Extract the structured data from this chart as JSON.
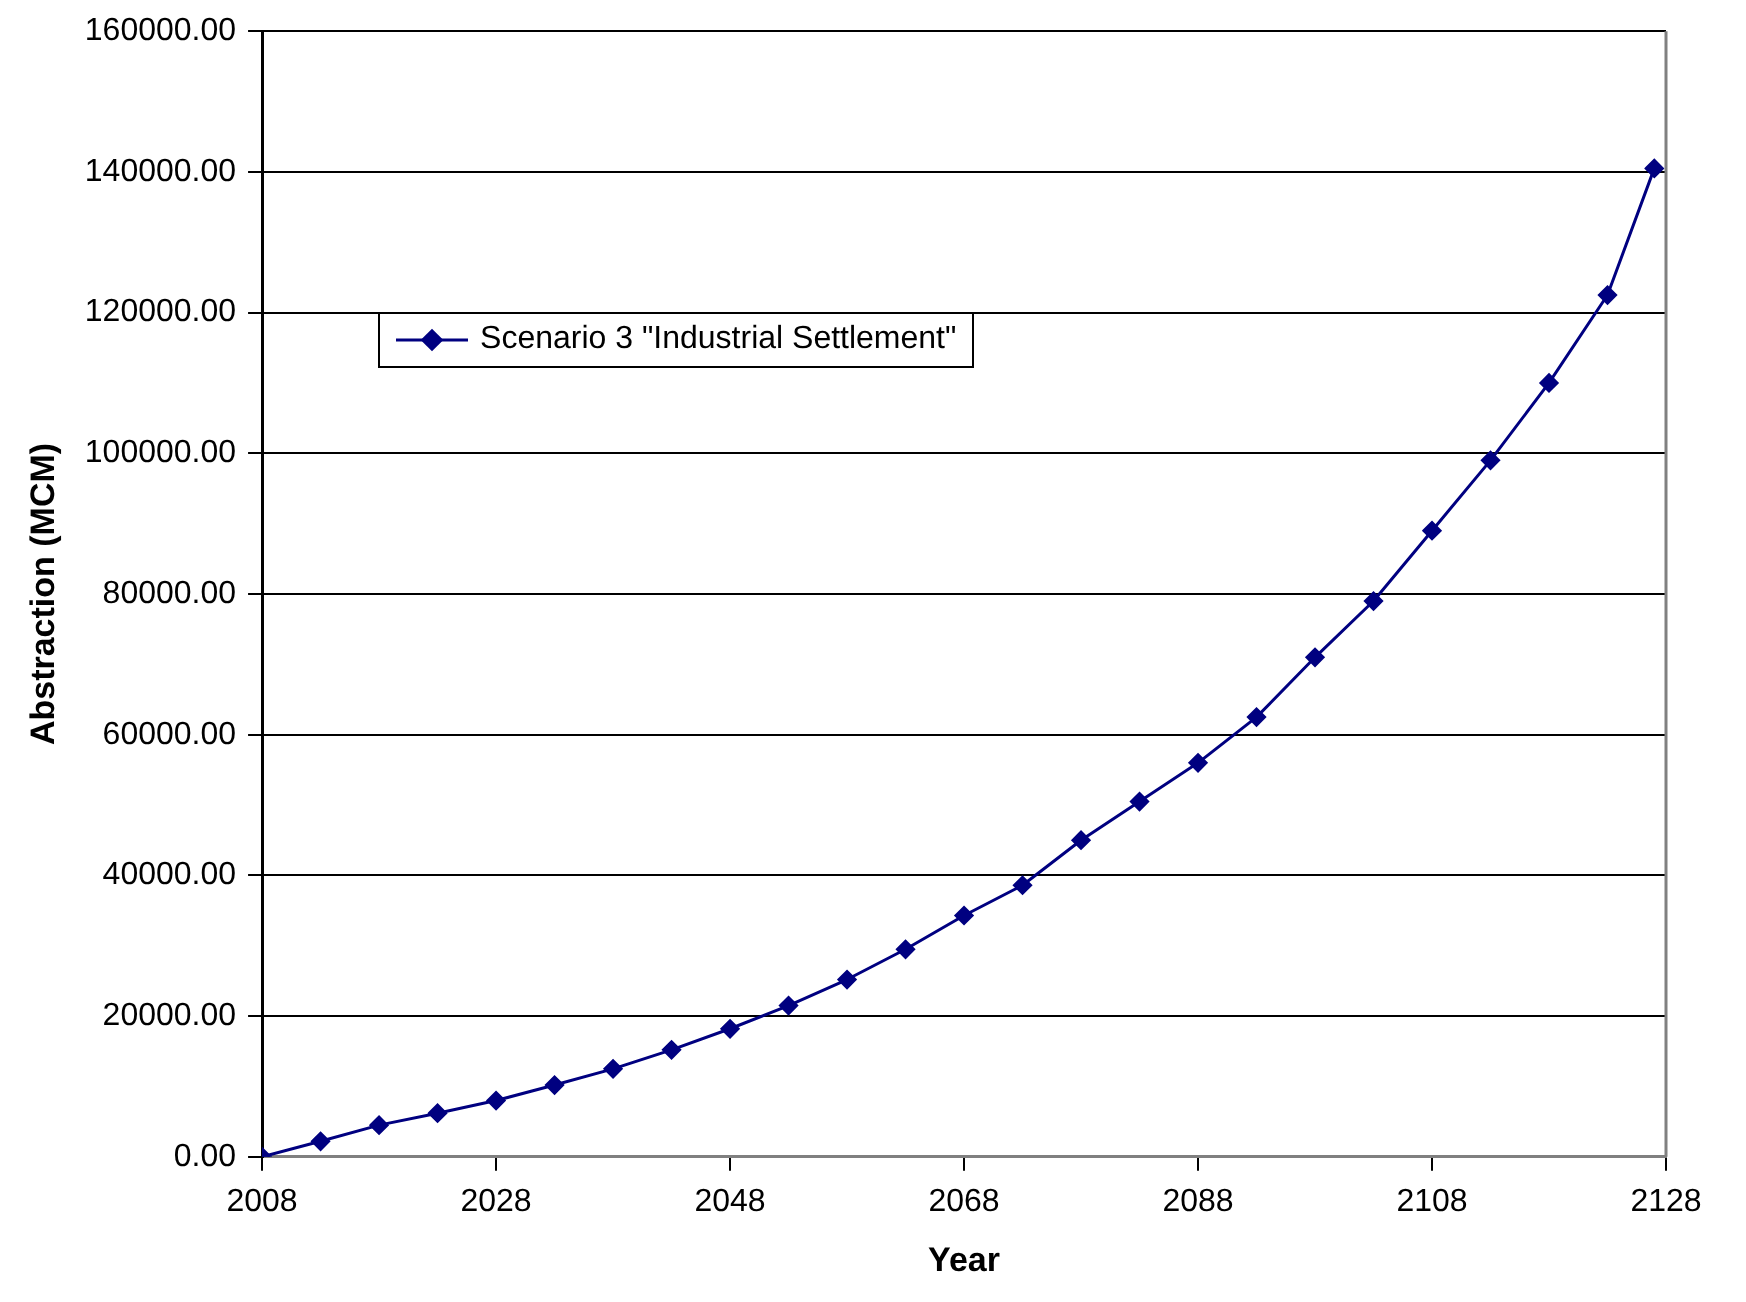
{
  "chart_data": {
    "type": "line",
    "xlabel": "Year",
    "ylabel": "Abstraction (MCM)",
    "x": [
      2008,
      2013,
      2018,
      2023,
      2028,
      2033,
      2038,
      2043,
      2048,
      2053,
      2058,
      2063,
      2068,
      2073,
      2078,
      2083,
      2088,
      2093,
      2098,
      2103,
      2108,
      2113,
      2118,
      2123,
      2127
    ],
    "series": [
      {
        "name": "Scenario 3 \"Industrial Settlement\"",
        "color": "#000080",
        "values": [
          0,
          2200,
          4500,
          6200,
          8000,
          10200,
          12500,
          15200,
          18200,
          21500,
          25200,
          29500,
          34300,
          38600,
          45000,
          50500,
          56000,
          62500,
          71000,
          79000,
          89000,
          99000,
          110000,
          122500,
          140500
        ]
      }
    ],
    "xlim": [
      2008,
      2128
    ],
    "xticks": [
      2008,
      2028,
      2048,
      2068,
      2088,
      2108,
      2128
    ],
    "ylim": [
      0,
      160000
    ],
    "yticks": [
      {
        "value": 0,
        "label": "0.00"
      },
      {
        "value": 20000,
        "label": "20000.00"
      },
      {
        "value": 40000,
        "label": "40000.00"
      },
      {
        "value": 60000,
        "label": "60000.00"
      },
      {
        "value": 80000,
        "label": "80000.00"
      },
      {
        "value": 100000,
        "label": "100000.00"
      },
      {
        "value": 120000,
        "label": "120000.00"
      },
      {
        "value": 140000,
        "label": "140000.00"
      },
      {
        "value": 160000,
        "label": "160000.00"
      }
    ],
    "grid": "y",
    "legend": "top left",
    "marker": "diamond",
    "line_style": "solid"
  }
}
